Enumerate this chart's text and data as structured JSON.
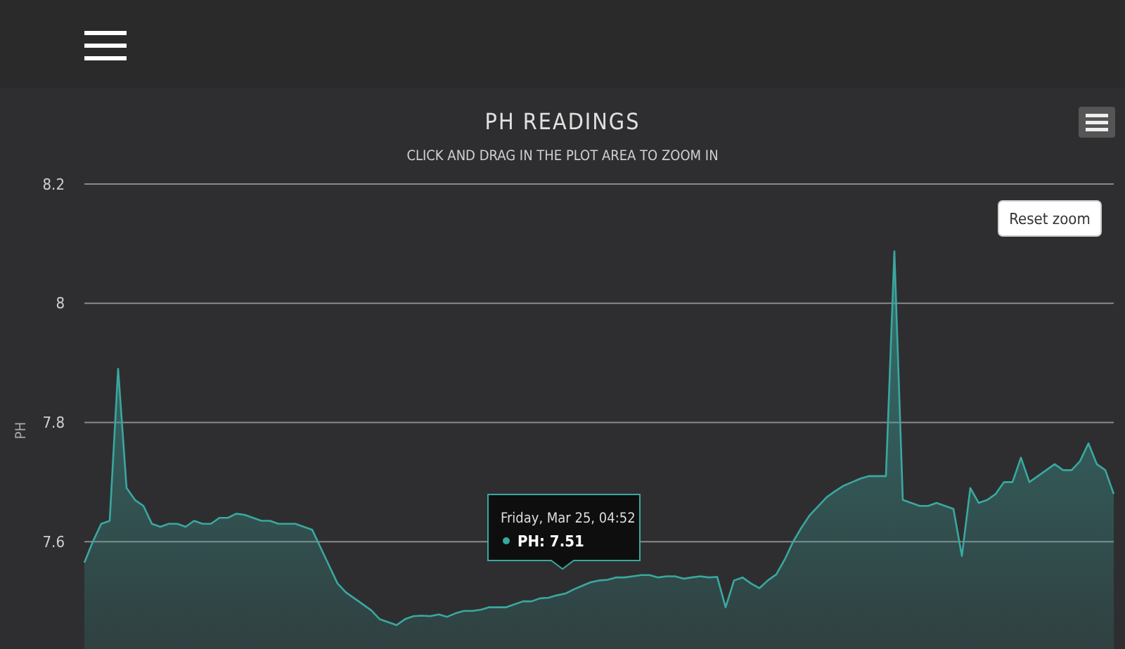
{
  "chart_data": {
    "type": "area",
    "title": "PH READINGS",
    "subtitle": "CLICK AND DRAG IN THE PLOT AREA TO ZOOM IN",
    "ylabel": "PH",
    "categories": [
      null,
      null,
      null,
      null,
      null,
      null,
      null,
      null,
      null,
      null,
      null,
      null,
      null,
      null,
      null,
      null,
      null,
      null,
      null,
      null,
      null,
      null,
      null,
      null,
      null,
      null,
      null,
      null,
      null,
      null,
      null,
      null,
      null,
      null,
      null,
      null,
      null,
      null,
      null,
      null,
      null,
      null,
      null,
      null,
      null,
      null,
      null,
      null,
      null,
      null,
      null,
      null,
      null,
      null,
      null,
      null,
      null,
      null,
      null,
      null,
      null,
      null,
      null,
      null,
      null,
      null,
      null,
      null,
      null,
      null,
      null,
      null,
      null,
      null,
      null,
      null,
      null,
      null,
      null,
      null,
      null,
      null,
      null,
      null,
      null,
      null,
      null,
      null,
      null,
      null,
      null,
      null,
      null,
      null,
      null,
      null,
      null,
      null,
      null,
      null,
      null,
      null,
      null,
      null,
      null,
      null,
      null,
      null,
      null,
      null,
      null,
      null,
      null,
      null,
      null,
      null,
      null,
      null,
      null,
      null,
      null,
      null,
      null
    ],
    "series": [
      {
        "color": "#3aa8a0",
        "values": [
          7.565,
          7.6,
          7.63,
          7.635,
          7.89,
          7.69,
          7.67,
          7.66,
          7.63,
          7.625,
          7.63,
          7.63,
          7.625,
          7.635,
          7.63,
          7.63,
          7.64,
          7.64,
          7.647,
          7.645,
          7.64,
          7.635,
          7.635,
          7.63,
          7.63,
          7.63,
          7.625,
          7.62,
          7.59,
          7.56,
          7.53,
          7.515,
          7.505,
          7.495,
          7.485,
          7.47,
          7.465,
          7.46,
          7.47,
          7.475,
          7.476,
          7.475,
          7.478,
          7.474,
          7.48,
          7.484,
          7.484,
          7.486,
          7.49,
          7.49,
          7.49,
          7.495,
          7.5,
          7.5,
          7.505,
          7.506,
          7.51,
          7.513,
          7.52,
          7.526,
          7.532,
          7.535,
          7.536,
          7.54,
          7.54,
          7.542,
          7.544,
          7.544,
          7.54,
          7.542,
          7.542,
          7.538,
          7.54,
          7.542,
          7.54,
          7.541,
          7.49,
          7.535,
          7.54,
          7.53,
          7.522,
          7.535,
          7.545,
          7.57,
          7.6,
          7.624,
          7.645,
          7.66,
          7.675,
          7.685,
          7.694,
          7.7,
          7.706,
          7.71,
          7.71,
          7.71,
          8.087,
          7.67,
          7.665,
          7.66,
          7.66,
          7.665,
          7.66,
          7.655,
          7.576,
          7.69,
          7.665,
          7.67,
          7.68,
          7.7,
          7.7,
          7.741,
          7.7,
          7.71,
          7.72,
          7.73,
          7.72,
          7.72,
          7.735,
          7.765,
          7.73,
          7.72,
          7.68
        ]
      }
    ],
    "ylim": [
      7.42,
      8.2
    ],
    "yticks": [
      7.6,
      7.8,
      {
        "value": 8,
        "label": "8"
      },
      8.2
    ],
    "grid": "y",
    "marker": "none",
    "tick_labels": "y",
    "annotations": [
      "Friday, Mar 25, 04:52",
      "PH: 7.51",
      "Reset zoom"
    ]
  }
}
